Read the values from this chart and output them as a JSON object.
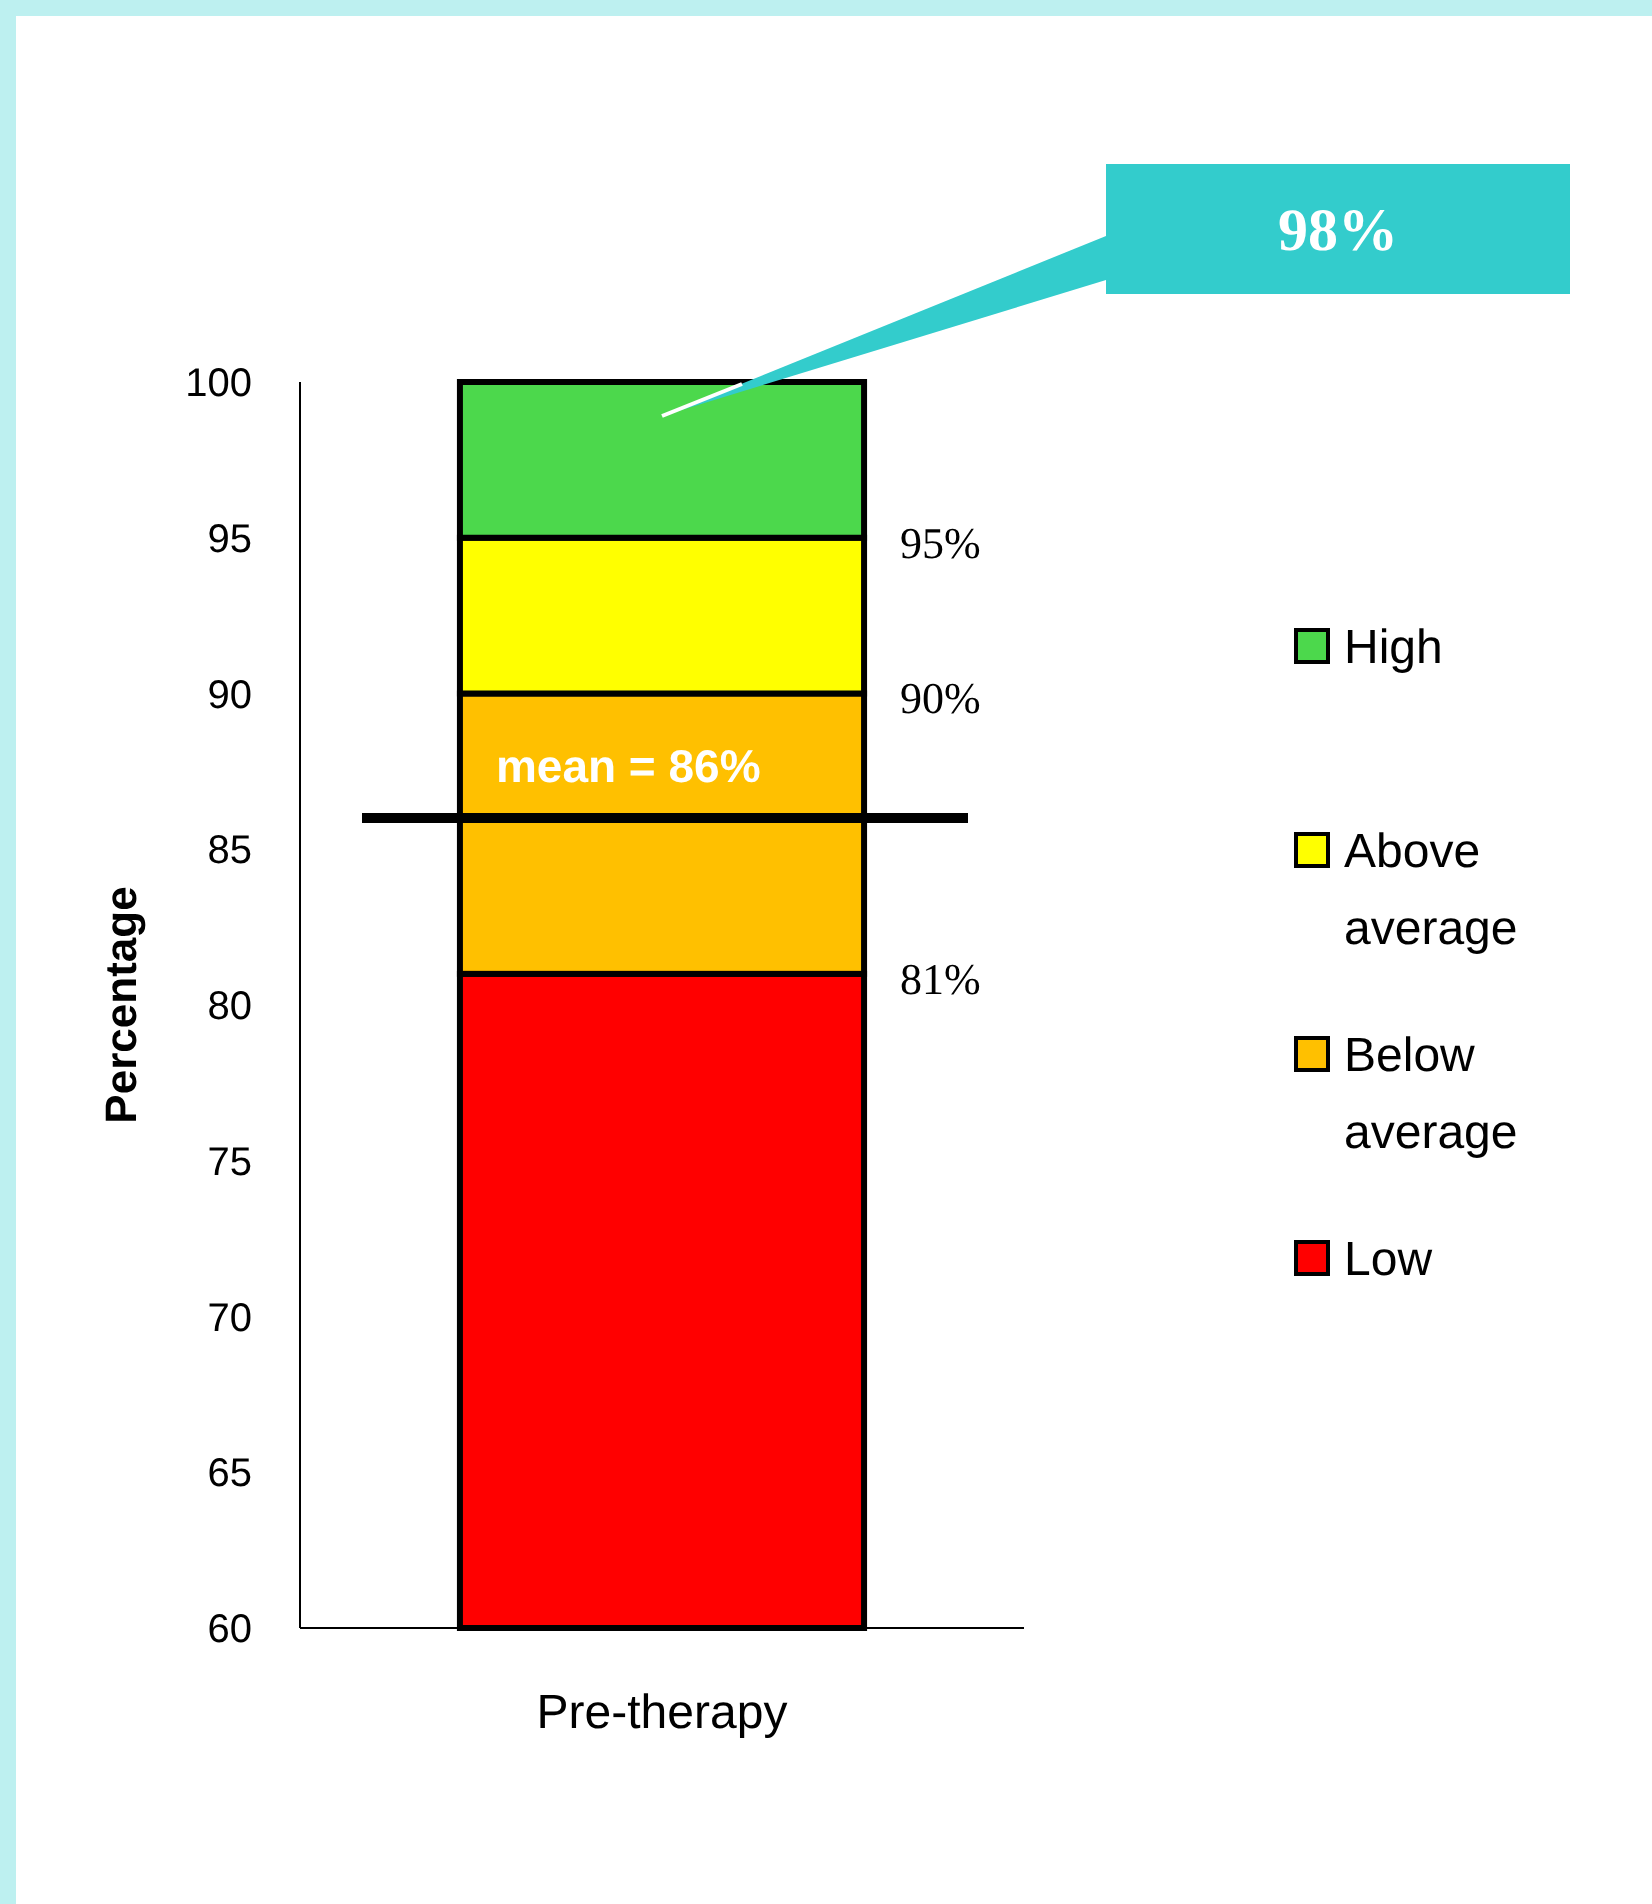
{
  "chart_data": {
    "type": "bar",
    "ylabel": "Percentage",
    "categories": [
      "Pre-therapy"
    ],
    "series": [
      {
        "name": "Low",
        "color": "#ff0000",
        "values": [
          21
        ],
        "base": [
          60
        ]
      },
      {
        "name": "Below average",
        "color": "#ffc000",
        "values": [
          9
        ],
        "base": [
          81
        ]
      },
      {
        "name": "Above average",
        "color": "#ffff00",
        "values": [
          5
        ],
        "base": [
          90
        ]
      },
      {
        "name": "High",
        "color": "#4cd84c",
        "values": [
          5
        ],
        "base": [
          95
        ]
      }
    ],
    "ylim": [
      60,
      100
    ],
    "yticks": [
      60,
      65,
      70,
      75,
      80,
      85,
      90,
      95,
      100
    ],
    "grid": false,
    "legend": "right",
    "ref_lines": [
      {
        "axis": "y",
        "value": 86,
        "label": "mean = 86%",
        "color": "#000000"
      }
    ],
    "annotations": [
      "81%",
      "90%",
      "95%",
      "98%"
    ]
  }
}
